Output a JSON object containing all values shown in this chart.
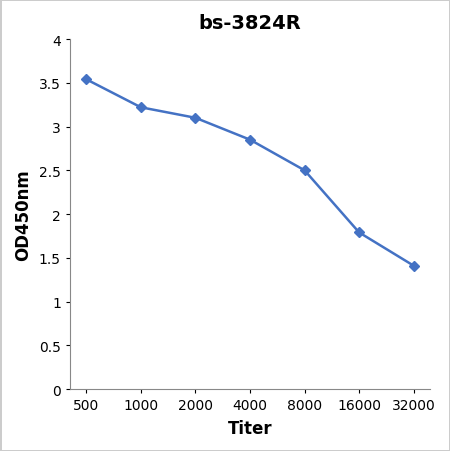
{
  "title": "bs-3824R",
  "xlabel": "Titer",
  "ylabel": "OD450nm",
  "x_values": [
    0,
    1,
    2,
    3,
    4,
    5,
    6
  ],
  "x_labels": [
    "500",
    "1000",
    "2000",
    "4000",
    "8000",
    "16000",
    "32000"
  ],
  "y_values": [
    3.54,
    3.22,
    3.1,
    2.85,
    2.5,
    1.79,
    1.41
  ],
  "y_ticks": [
    0,
    0.5,
    1.0,
    1.5,
    2.0,
    2.5,
    3.0,
    3.5,
    4.0
  ],
  "ylim": [
    0,
    4.0
  ],
  "xlim": [
    -0.3,
    6.3
  ],
  "line_color": "#4472C4",
  "marker": "D",
  "marker_size": 5,
  "line_width": 1.8,
  "title_fontsize": 14,
  "axis_label_fontsize": 12,
  "tick_fontsize": 10,
  "background_color": "#ffffff"
}
